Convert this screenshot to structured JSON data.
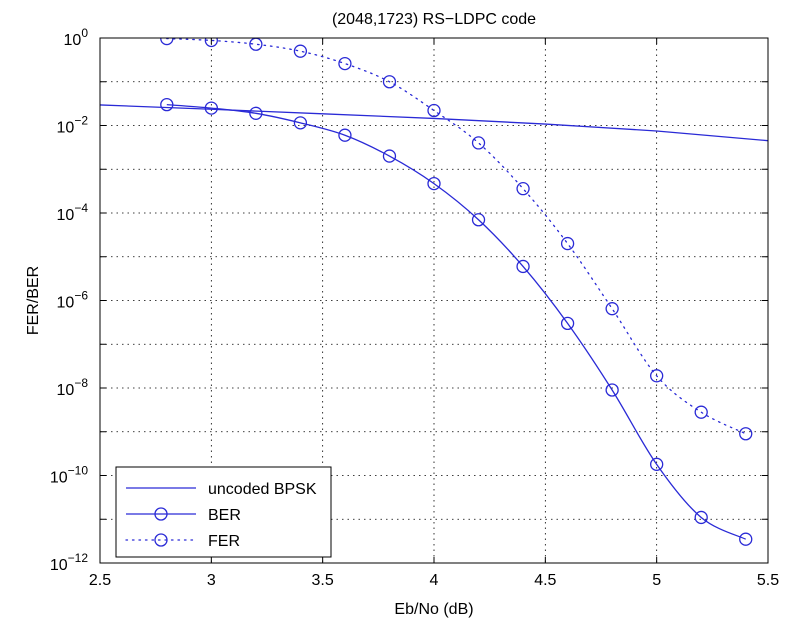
{
  "chart_data": {
    "type": "line",
    "title": "(2048,1723) RS−LDPC code",
    "xlabel": "Eb/No (dB)",
    "ylabel": "FER/BER",
    "xlim": [
      2.5,
      5.5
    ],
    "ylim_exponent": [
      -12,
      0
    ],
    "yscale": "log",
    "grid": true,
    "legend_position": "bottom-left",
    "x_ticks": [
      "2.5",
      "3",
      "3.5",
      "4",
      "4.5",
      "5",
      "5.5"
    ],
    "y_ticks": [
      {
        "base": "10",
        "exp": "0"
      },
      {
        "base": "10",
        "exp": "−2"
      },
      {
        "base": "10",
        "exp": "−4"
      },
      {
        "base": "10",
        "exp": "−6"
      },
      {
        "base": "10",
        "exp": "−8"
      },
      {
        "base": "10",
        "exp": "−10"
      },
      {
        "base": "10",
        "exp": "−12"
      }
    ],
    "series_color": "#2a2ad6",
    "series": [
      {
        "name": "uncoded BPSK",
        "style": "solid",
        "marker": "none",
        "x": [
          2.5,
          3.0,
          3.5,
          4.0,
          4.5,
          5.0,
          5.5
        ],
        "y": [
          0.0295,
          0.0235,
          0.0185,
          0.0145,
          0.0108,
          0.0075,
          0.0045
        ]
      },
      {
        "name": "BER",
        "style": "solid",
        "marker": "circle",
        "x": [
          2.8,
          3.0,
          3.2,
          3.4,
          3.6,
          3.8,
          4.0,
          4.2,
          4.4,
          4.6,
          4.8,
          5.0,
          5.2,
          5.4
        ],
        "y": [
          0.03,
          0.025,
          0.019,
          0.0115,
          0.006,
          0.002,
          0.00047,
          7e-05,
          6e-06,
          3e-07,
          9e-09,
          1.8e-10,
          1.1e-11,
          3.5e-12
        ]
      },
      {
        "name": "FER",
        "style": "dotted",
        "marker": "circle",
        "x": [
          2.8,
          3.0,
          3.2,
          3.4,
          3.6,
          3.8,
          4.0,
          4.2,
          4.4,
          4.6,
          4.8,
          5.0,
          5.2,
          5.4
        ],
        "y": [
          0.97,
          0.88,
          0.72,
          0.5,
          0.26,
          0.1,
          0.022,
          0.004,
          0.00036,
          2e-05,
          6.5e-07,
          1.9e-08,
          2.8e-09,
          9e-10
        ]
      }
    ]
  }
}
